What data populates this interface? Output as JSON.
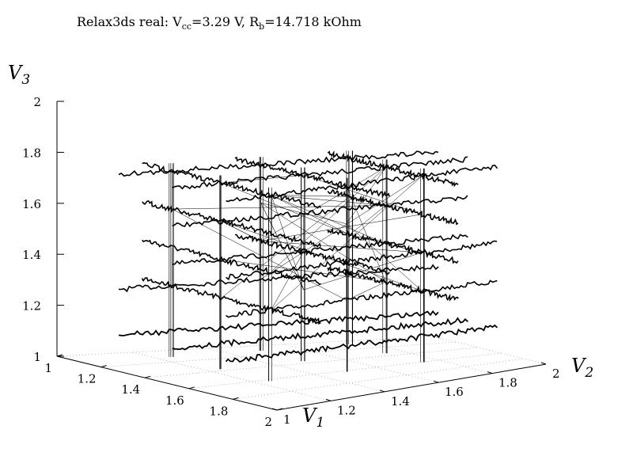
{
  "chart_data": {
    "type": "line",
    "title_prefix": "Relax3ds real: V",
    "title_sub1": "cc",
    "title_mid": "=3.29 V, R",
    "title_sub2": "b",
    "title_suffix": "=14.718 kOhm",
    "xlabel": {
      "main": "V",
      "sub": "1"
    },
    "ylabel": {
      "main": "V",
      "sub": "2"
    },
    "zlabel": {
      "main": "V",
      "sub": "3"
    },
    "xlim": [
      1,
      2
    ],
    "ylim": [
      1,
      2
    ],
    "zlim": [
      1,
      2
    ],
    "x_ticks": [
      "1",
      "1.2",
      "1.4",
      "1.6",
      "1.8",
      "2"
    ],
    "y_ticks": [
      "1",
      "1.2",
      "1.4",
      "1.6",
      "1.8",
      "2"
    ],
    "z_ticks": [
      "1",
      "1.2",
      "1.4",
      "1.6",
      "1.8",
      "2"
    ],
    "grid": true,
    "view": "3d",
    "x_levels": [
      1.2,
      1.45,
      1.7
    ],
    "y_levels": [
      1.2,
      1.45,
      1.7
    ],
    "z_levels": [
      1.3,
      1.45,
      1.6,
      1.75
    ],
    "series_color": "#000000"
  }
}
